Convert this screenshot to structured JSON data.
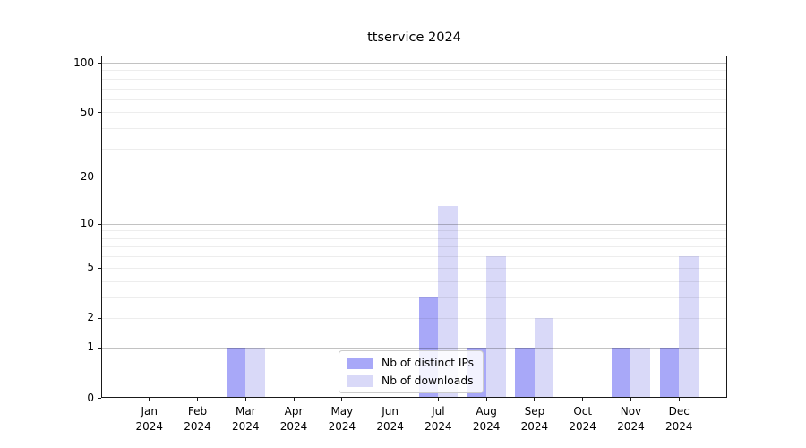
{
  "chart_data": {
    "type": "bar",
    "title": "ttservice 2024",
    "categories": [
      "Jan 2024",
      "Feb 2024",
      "Mar 2024",
      "Apr 2024",
      "May 2024",
      "Jun 2024",
      "Jul 2024",
      "Aug 2024",
      "Sep 2024",
      "Oct 2024",
      "Nov 2024",
      "Dec 2024"
    ],
    "series": [
      {
        "name": "Nb of distinct IPs",
        "color": "#a8a8f8",
        "values": [
          0,
          0,
          1,
          0,
          0,
          0,
          3,
          1,
          1,
          0,
          1,
          1
        ]
      },
      {
        "name": "Nb of downloads",
        "color": "#d9d9f8",
        "values": [
          0,
          0,
          1,
          0,
          0,
          0,
          13,
          6,
          2,
          0,
          1,
          6
        ]
      }
    ],
    "xlabel": "",
    "ylabel": "",
    "yscale": "log1p",
    "ylim": [
      0,
      111
    ],
    "yticks": [
      0,
      1,
      2,
      5,
      10,
      20,
      50,
      100
    ],
    "grid_major": [
      1,
      10,
      100
    ],
    "grid_minor": [
      2,
      3,
      4,
      5,
      6,
      7,
      8,
      9,
      20,
      30,
      40,
      50,
      60,
      70,
      80,
      90
    ],
    "grid": "on",
    "legend_position": "lower center",
    "axis_color": "#1a1a1a"
  }
}
